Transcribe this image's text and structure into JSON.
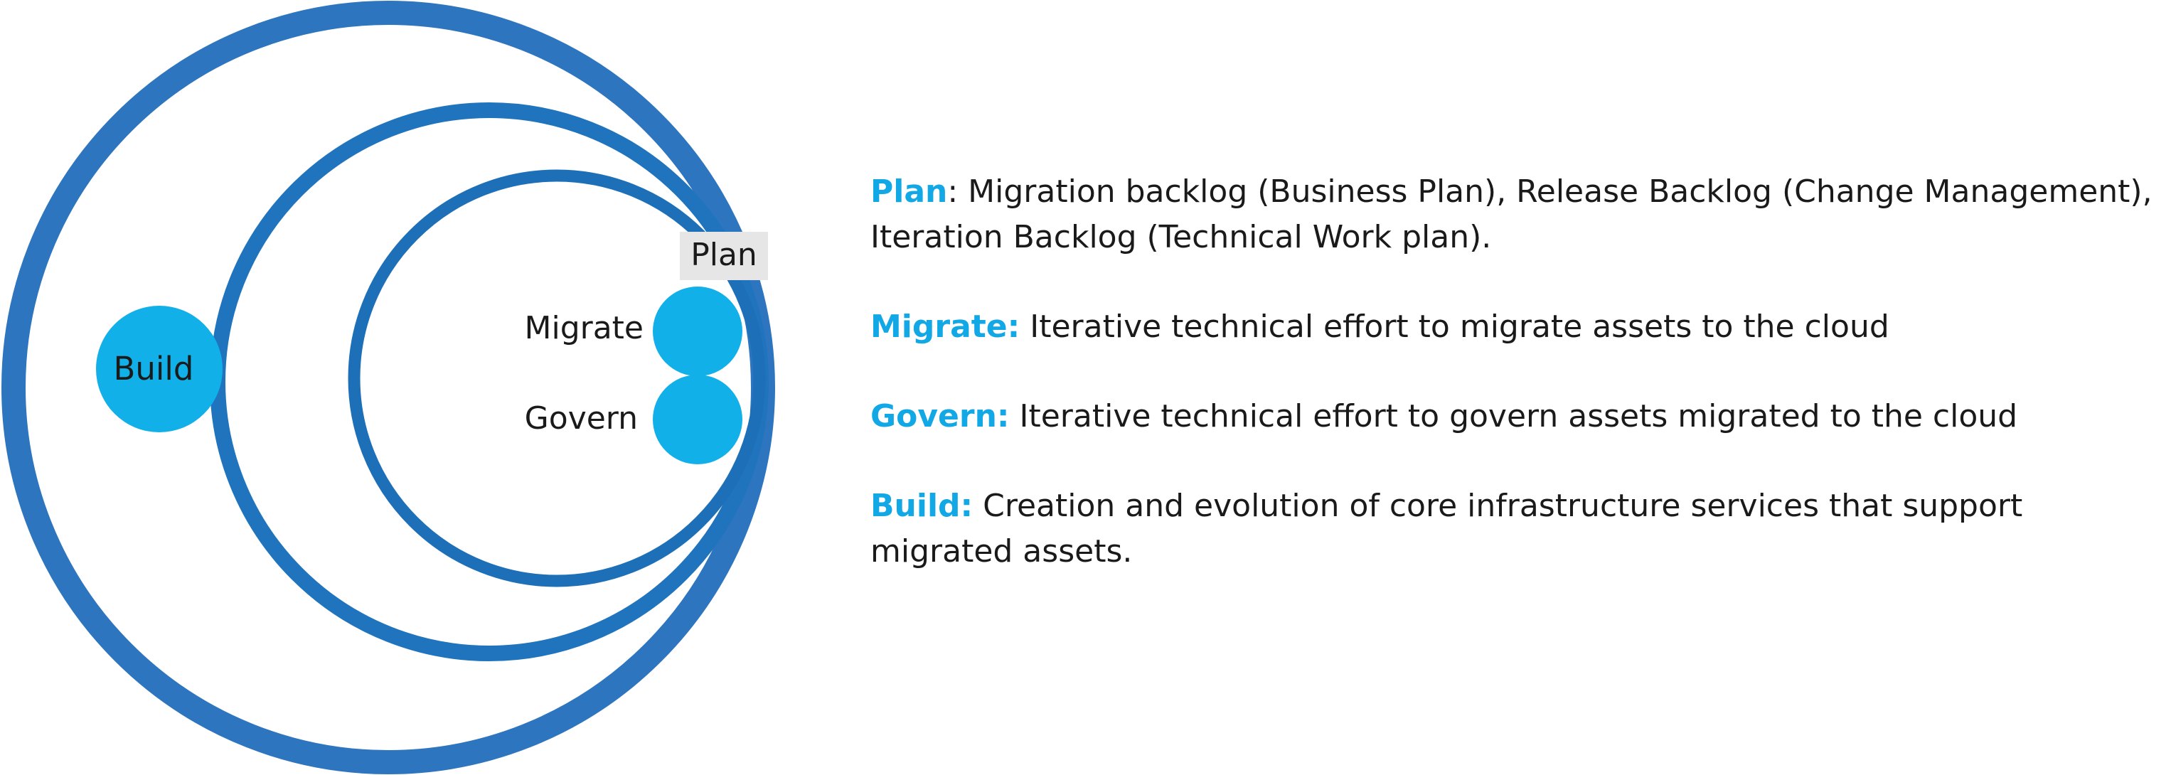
{
  "diagram": {
    "labels": {
      "plan": "Plan",
      "migrate": "Migrate",
      "govern": "Govern",
      "build": "Build"
    },
    "colors": {
      "outer_ring": "#2e75bf",
      "middle_ring": "#1f74bd",
      "inner_ring": "#1d70b8",
      "bubble": "#12b0e8",
      "plan_box": "#e6e6e6"
    }
  },
  "descriptions": [
    {
      "id": "plan",
      "term": "Plan",
      "separator": ":",
      "text": " Migration backlog (Business Plan), Release Backlog (Change Management), Iteration Backlog (Technical Work plan)."
    },
    {
      "id": "migrate",
      "term": "Migrate",
      "separator": ":",
      "text": " Iterative technical effort to migrate assets to the cloud"
    },
    {
      "id": "govern",
      "term": "Govern",
      "separator": ":",
      "text": " Iterative technical effort to govern assets migrated to the cloud"
    },
    {
      "id": "build",
      "term": "Build",
      "separator": ":",
      "text": " Creation and evolution of core infrastructure services that support migrated assets."
    }
  ]
}
